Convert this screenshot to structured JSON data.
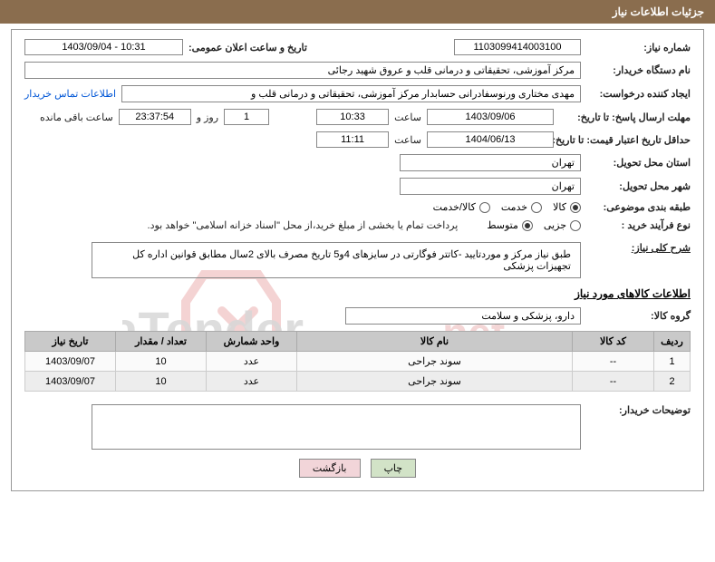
{
  "header": {
    "title": "جزئیات اطلاعات نیاز"
  },
  "need_number": {
    "label": "شماره نیاز:",
    "value": "1103099414003100"
  },
  "announce": {
    "label": "تاریخ و ساعت اعلان عمومی:",
    "value": "1403/09/04 - 10:31"
  },
  "buyer_org": {
    "label": "نام دستگاه خریدار:",
    "value": "مرکز آموزشی، تحقیقاتی و درمانی قلب و عروق شهید رجائی"
  },
  "requester": {
    "label": "ایجاد کننده درخواست:",
    "value": "مهدی مختاری ورنوسفادرانی حسابدار مرکز آموزشی، تحقیقاتی و درمانی قلب و",
    "link": "اطلاعات تماس خریدار"
  },
  "response_deadline": {
    "label": "مهلت ارسال پاسخ: تا تاریخ:",
    "date": "1403/09/06",
    "time_label": "ساعت",
    "time": "10:33",
    "days": "1",
    "days_suffix": "روز و",
    "remain": "23:37:54",
    "remain_suffix": "ساعت باقی مانده"
  },
  "price_validity": {
    "label": "حداقل تاریخ اعتبار قیمت: تا تاریخ:",
    "date": "1404/06/13",
    "time_label": "ساعت",
    "time": "11:11"
  },
  "delivery_province": {
    "label": "استان محل تحویل:",
    "value": "تهران"
  },
  "delivery_city": {
    "label": "شهر محل تحویل:",
    "value": "تهران"
  },
  "subject_class": {
    "label": "طبقه بندی موضوعی:",
    "options": [
      "کالا",
      "خدمت",
      "کالا/خدمت"
    ],
    "selected": 0
  },
  "purchase_type": {
    "label": "نوع فرآیند خرید :",
    "options": [
      "جزیی",
      "متوسط"
    ],
    "selected": 1,
    "note": "پرداخت تمام یا بخشی از مبلغ خرید،از محل \"اسناد خزانه اسلامی\" خواهد بود."
  },
  "need_title": {
    "label": "شرح کلی نیاز:",
    "value": "طبق نیاز مرکز و موردتایید -کاتتر فوگارتی در سایزهای 4و5  تاریخ مصرف بالای 2سال مطابق قوانین اداره کل تجهیزات پزشکی"
  },
  "goods_section": {
    "title": "اطلاعات کالاهای مورد نیاز"
  },
  "goods_group": {
    "label": "گروه کالا:",
    "value": "دارو، پزشکی و سلامت"
  },
  "table": {
    "headers": [
      "ردیف",
      "کد کالا",
      "نام کالا",
      "واحد شمارش",
      "تعداد / مقدار",
      "تاریخ نیاز"
    ],
    "rows": [
      [
        "1",
        "--",
        "سوند جراحی",
        "عدد",
        "10",
        "1403/09/07"
      ],
      [
        "2",
        "--",
        "سوند جراحی",
        "عدد",
        "10",
        "1403/09/07"
      ]
    ]
  },
  "buyer_notes": {
    "label": "توضیحات خریدار:"
  },
  "buttons": {
    "print": "چاپ",
    "back": "بازگشت"
  }
}
